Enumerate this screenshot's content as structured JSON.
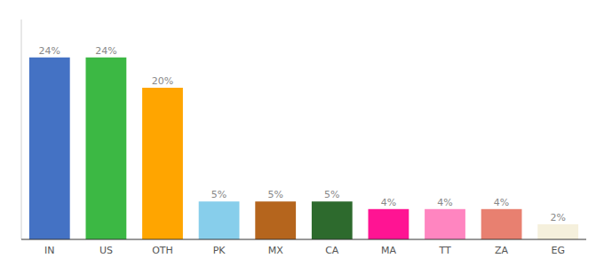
{
  "chart_data": {
    "type": "bar",
    "categories": [
      "IN",
      "US",
      "OTH",
      "PK",
      "MX",
      "CA",
      "MA",
      "TT",
      "ZA",
      "EG"
    ],
    "values": [
      24,
      24,
      20,
      5,
      5,
      5,
      4,
      4,
      4,
      2
    ],
    "value_labels": [
      "24%",
      "24%",
      "20%",
      "5%",
      "5%",
      "5%",
      "4%",
      "4%",
      "4%",
      "2%"
    ],
    "colors": [
      "#4472C4",
      "#3CB844",
      "#FFA500",
      "#87CEEB",
      "#B5651D",
      "#2D6A2D",
      "#FF1493",
      "#FF85C0",
      "#E88070",
      "#F5F0DC"
    ],
    "ylim": [
      0,
      29
    ],
    "data_labels": true,
    "tick_labels": "x",
    "grid": false
  }
}
